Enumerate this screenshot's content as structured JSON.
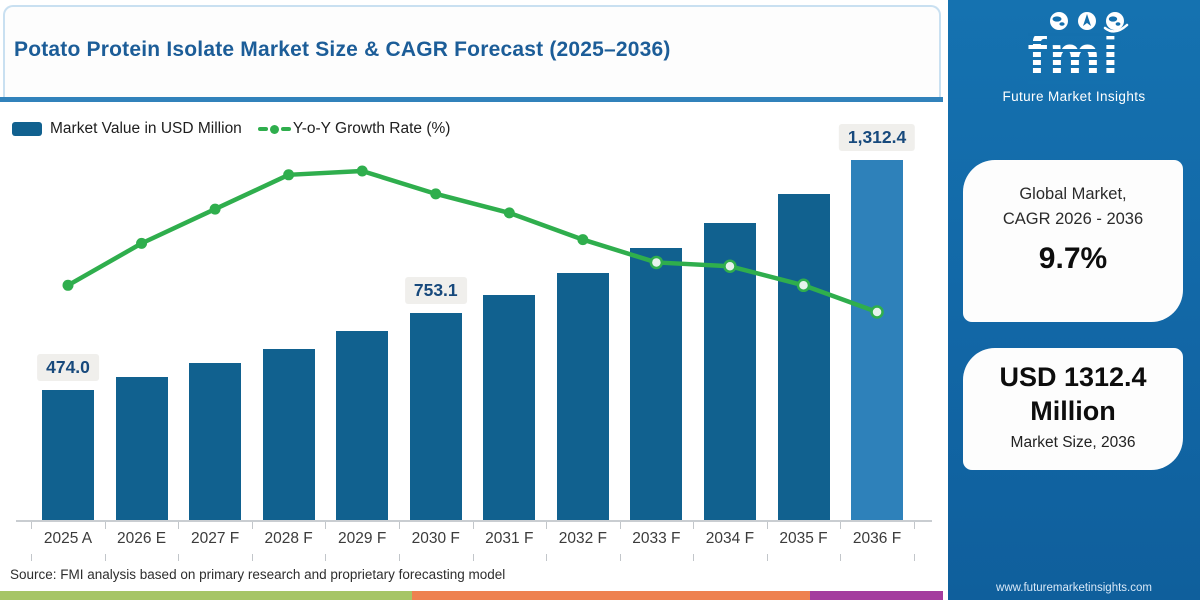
{
  "header": {
    "title": "Potato Protein Isolate Market Size & CAGR Forecast (2025–2036)"
  },
  "legend": {
    "bar_label": "Market Value in USD Million",
    "line_label": "Y-o-Y Growth Rate (%)"
  },
  "chart_data": {
    "type": "bar",
    "title": "Potato Protein Isolate Market Size & CAGR Forecast (2025–2036)",
    "categories": [
      "2025 A",
      "2026 E",
      "2027 F",
      "2028 F",
      "2029 F",
      "2030 F",
      "2031 F",
      "2032 F",
      "2033 F",
      "2034 F",
      "2035 F",
      "2036 F"
    ],
    "series": [
      {
        "name": "Market Value in USD Million",
        "type": "bar",
        "unit": "USD Million",
        "values": [
          474.0,
          521.0,
          572.0,
          623.0,
          688.0,
          753.1,
          822.0,
          901.0,
          991.0,
          1084.0,
          1187.0,
          1312.4
        ],
        "note": "only 2025, 2030 and 2036 bars carry printed labels; other values estimated from bar heights"
      },
      {
        "name": "Y-o-Y Growth Rate (%)",
        "type": "line",
        "unit": "%",
        "values": [
          8.0,
          9.1,
          10.0,
          10.9,
          11.0,
          10.4,
          9.9,
          9.2,
          8.6,
          8.5,
          8.0,
          7.3
        ],
        "hollow_markers_from_index": 8,
        "note": "growth-rate axis not labeled; values estimated from line position"
      }
    ],
    "data_labels": [
      {
        "index": 0,
        "text": "474.0"
      },
      {
        "index": 5,
        "text": "753.1"
      },
      {
        "index": 11,
        "text": "1,312.4"
      }
    ],
    "bar_axis_range": [
      0,
      1450
    ],
    "line_axis_range": [
      6.0,
      11.9
    ],
    "grid": false,
    "legend_position": "top-left",
    "highlight_last_bar": true
  },
  "sidebar": {
    "logo_text": "fmi",
    "logo_subtext": "Future Market Insights",
    "cagr_card": {
      "line1": "Global Market,",
      "line2": "CAGR 2026 - 2036",
      "value": "9.7%"
    },
    "size_card": {
      "value_line1": "USD 1312.4",
      "value_line2": "Million",
      "caption": "Market Size, 2036"
    },
    "website": "www.futuremarketinsights.com"
  },
  "footer": {
    "source": "Source: FMI analysis based on primary research and proprietary forecasting model"
  },
  "colors": {
    "bar": "#11618f",
    "bar_highlight": "#2e81ba",
    "line": "#2fae4d",
    "marker_hollow_fill": "#e7f2ec",
    "title": "#1c5d98",
    "value_label": "#17497c",
    "sidebar_bg": "#1469a7",
    "divider": "#3182bb",
    "stripe_green": "#a6c566",
    "stripe_orange": "#ee8150",
    "stripe_purple": "#a43c9e"
  }
}
